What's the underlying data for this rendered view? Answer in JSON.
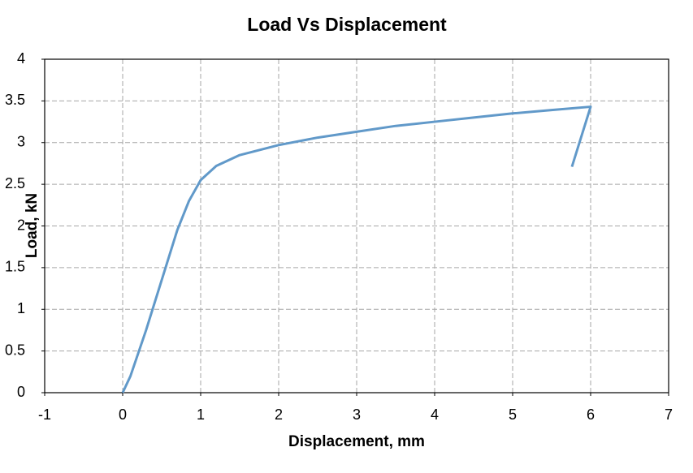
{
  "chart_data": {
    "type": "line",
    "title": "Load Vs Displacement",
    "x_label": "Displacement, mm",
    "y_label": "Load, kN",
    "x": [
      0,
      0.1,
      0.3,
      0.5,
      0.7,
      0.85,
      1.0,
      1.2,
      1.5,
      2,
      2.5,
      3,
      3.5,
      4,
      4.5,
      5,
      5.5,
      6,
      5.76
    ],
    "values": [
      0,
      0.2,
      0.75,
      1.35,
      1.95,
      2.3,
      2.55,
      2.72,
      2.85,
      2.97,
      3.06,
      3.13,
      3.2,
      3.25,
      3.3,
      3.35,
      3.39,
      3.43,
      2.71
    ],
    "color": "#6199c9",
    "xlim": [
      -1,
      7
    ],
    "xticks": [
      -1,
      0,
      1,
      2,
      3,
      4,
      5,
      6,
      7
    ],
    "ylim": [
      0,
      4
    ],
    "yticks": [
      0,
      0.5,
      1,
      1.5,
      2,
      2.5,
      3,
      3.5,
      4
    ],
    "grid": true
  }
}
